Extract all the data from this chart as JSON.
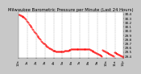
{
  "title": "Milwaukee Barometric Pressure per Minute (Last 24 Hours)",
  "bg_color": "#c8c8c8",
  "plot_bg_color": "#ffffff",
  "line_color": "#ff0000",
  "grid_color": "#888888",
  "ylim": [
    29.35,
    30.45
  ],
  "yticks": [
    29.4,
    29.5,
    29.6,
    29.7,
    29.8,
    29.9,
    30.0,
    30.1,
    30.2,
    30.3,
    30.4
  ],
  "ytick_labels": [
    "29.4",
    "29.5",
    "29.6",
    "29.7",
    "29.8",
    "29.9",
    "30.0",
    "30.1",
    "30.2",
    "30.3",
    "30.4"
  ],
  "xlim": [
    0,
    143
  ],
  "x_data": [
    0,
    1,
    2,
    3,
    4,
    5,
    6,
    7,
    8,
    9,
    10,
    11,
    12,
    13,
    14,
    15,
    16,
    17,
    18,
    19,
    20,
    21,
    22,
    23,
    24,
    25,
    26,
    27,
    28,
    29,
    30,
    31,
    32,
    33,
    34,
    35,
    36,
    37,
    38,
    39,
    40,
    41,
    42,
    43,
    44,
    45,
    46,
    47,
    48,
    49,
    50,
    51,
    52,
    53,
    54,
    55,
    56,
    57,
    58,
    59,
    60,
    61,
    62,
    63,
    64,
    65,
    66,
    67,
    68,
    69,
    70,
    71,
    72,
    73,
    74,
    75,
    76,
    77,
    78,
    79,
    80,
    81,
    82,
    83,
    84,
    85,
    86,
    87,
    88,
    89,
    90,
    91,
    92,
    93,
    94,
    95,
    96,
    97,
    98,
    99,
    100,
    101,
    102,
    103,
    104,
    105,
    106,
    107,
    108,
    109,
    110,
    111,
    112,
    113,
    114,
    115,
    116,
    117,
    118,
    119,
    120,
    121,
    122,
    123,
    124,
    125,
    126,
    127,
    128,
    129,
    130,
    131,
    132,
    133,
    134,
    135,
    136,
    137,
    138,
    139,
    140,
    141,
    142,
    143
  ],
  "y_data": [
    30.4,
    30.39,
    30.38,
    30.37,
    30.36,
    30.35,
    30.34,
    30.33,
    30.31,
    30.29,
    30.27,
    30.24,
    30.22,
    30.2,
    30.17,
    30.15,
    30.12,
    30.1,
    30.08,
    30.05,
    30.03,
    30.0,
    29.98,
    29.95,
    29.93,
    29.9,
    29.88,
    29.85,
    29.83,
    29.81,
    29.79,
    29.77,
    29.75,
    29.73,
    29.71,
    29.7,
    29.68,
    29.66,
    29.65,
    29.63,
    29.62,
    29.6,
    29.59,
    29.58,
    29.57,
    29.56,
    29.55,
    29.54,
    29.54,
    29.53,
    29.53,
    29.52,
    29.52,
    29.52,
    29.52,
    29.52,
    29.52,
    29.52,
    29.52,
    29.52,
    29.52,
    29.52,
    29.52,
    29.53,
    29.53,
    29.53,
    29.54,
    29.54,
    29.54,
    29.55,
    29.55,
    29.55,
    29.56,
    29.56,
    29.56,
    29.56,
    29.57,
    29.57,
    29.57,
    29.57,
    29.57,
    29.57,
    29.57,
    29.57,
    29.57,
    29.57,
    29.57,
    29.57,
    29.57,
    29.57,
    29.57,
    29.57,
    29.57,
    29.57,
    29.57,
    29.57,
    29.56,
    29.56,
    29.55,
    29.55,
    29.54,
    29.53,
    29.52,
    29.51,
    29.5,
    29.49,
    29.48,
    29.47,
    29.46,
    29.45,
    29.44,
    29.43,
    29.42,
    29.41,
    29.4,
    29.55,
    29.54,
    29.53,
    29.52,
    29.51,
    29.5,
    29.49,
    29.48,
    29.47,
    29.46,
    29.45,
    29.44,
    29.43,
    29.42,
    29.41,
    29.4,
    29.5,
    29.49,
    29.48,
    29.47,
    29.46,
    29.45,
    29.44,
    29.43,
    29.42,
    29.41,
    29.4,
    29.39,
    29.38
  ],
  "marker_size": 0.8,
  "title_fontsize": 3.8,
  "tick_fontsize": 3.0,
  "xtick_positions": [
    0,
    12,
    24,
    36,
    48,
    60,
    72,
    84,
    96,
    108,
    120,
    132,
    143
  ],
  "xtick_labels": [
    "12a",
    "1a",
    "2a",
    "3a",
    "4a",
    "5a",
    "6a",
    "7a",
    "8a",
    "9a",
    "10a",
    "11a",
    "12p"
  ],
  "vgrid_positions": [
    12,
    24,
    36,
    48,
    60,
    72,
    84,
    96,
    108,
    120,
    132
  ]
}
